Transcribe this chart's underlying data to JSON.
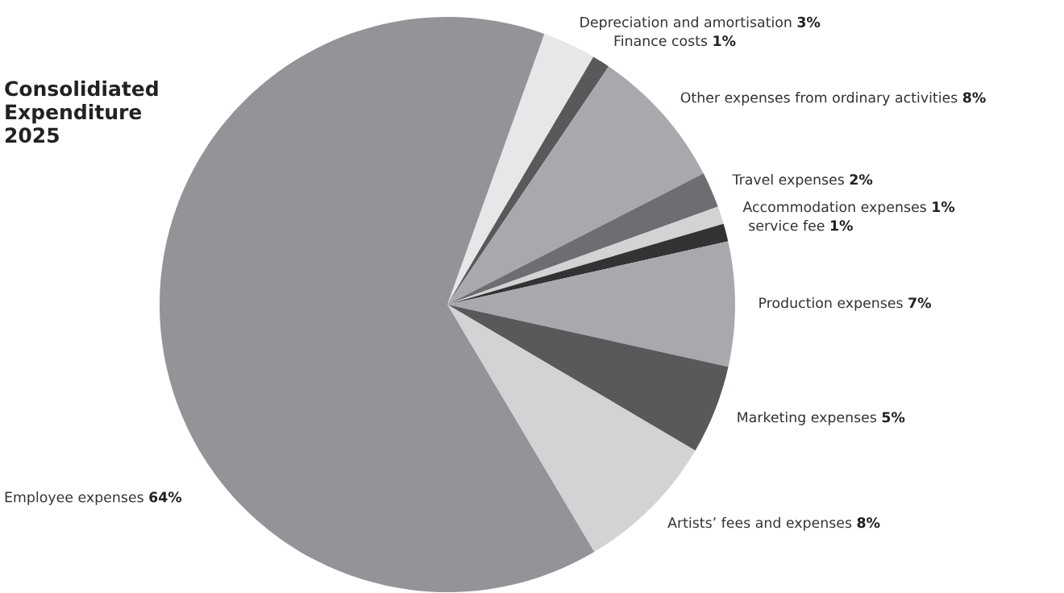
{
  "chart_data": {
    "type": "pie",
    "title": "Consolidiated\nExpenditure\n2025",
    "categories": [
      "Depreciation and amortisation",
      "Finance costs",
      "Other expenses from ordinary activities",
      "Travel expenses",
      "Accommodation expenses",
      "service fee",
      "Production expenses",
      "Marketing expenses",
      "Artists’ fees and expenses",
      "Employee expenses"
    ],
    "values": [
      3,
      1,
      8,
      2,
      1,
      1,
      7,
      5,
      8,
      64
    ],
    "value_labels": [
      "3%",
      "1%",
      "8%",
      "2%",
      "1%",
      "1%",
      "7%",
      "5%",
      "8%",
      "64%"
    ],
    "colors": [
      "#e6e7e8",
      "#58595b",
      "#a7a9ac",
      "#6d6e71",
      "#d1d3d4",
      "#333335",
      "#a7a9ac",
      "#58595b",
      "#d1d3d4",
      "#939497"
    ],
    "legend": false
  }
}
